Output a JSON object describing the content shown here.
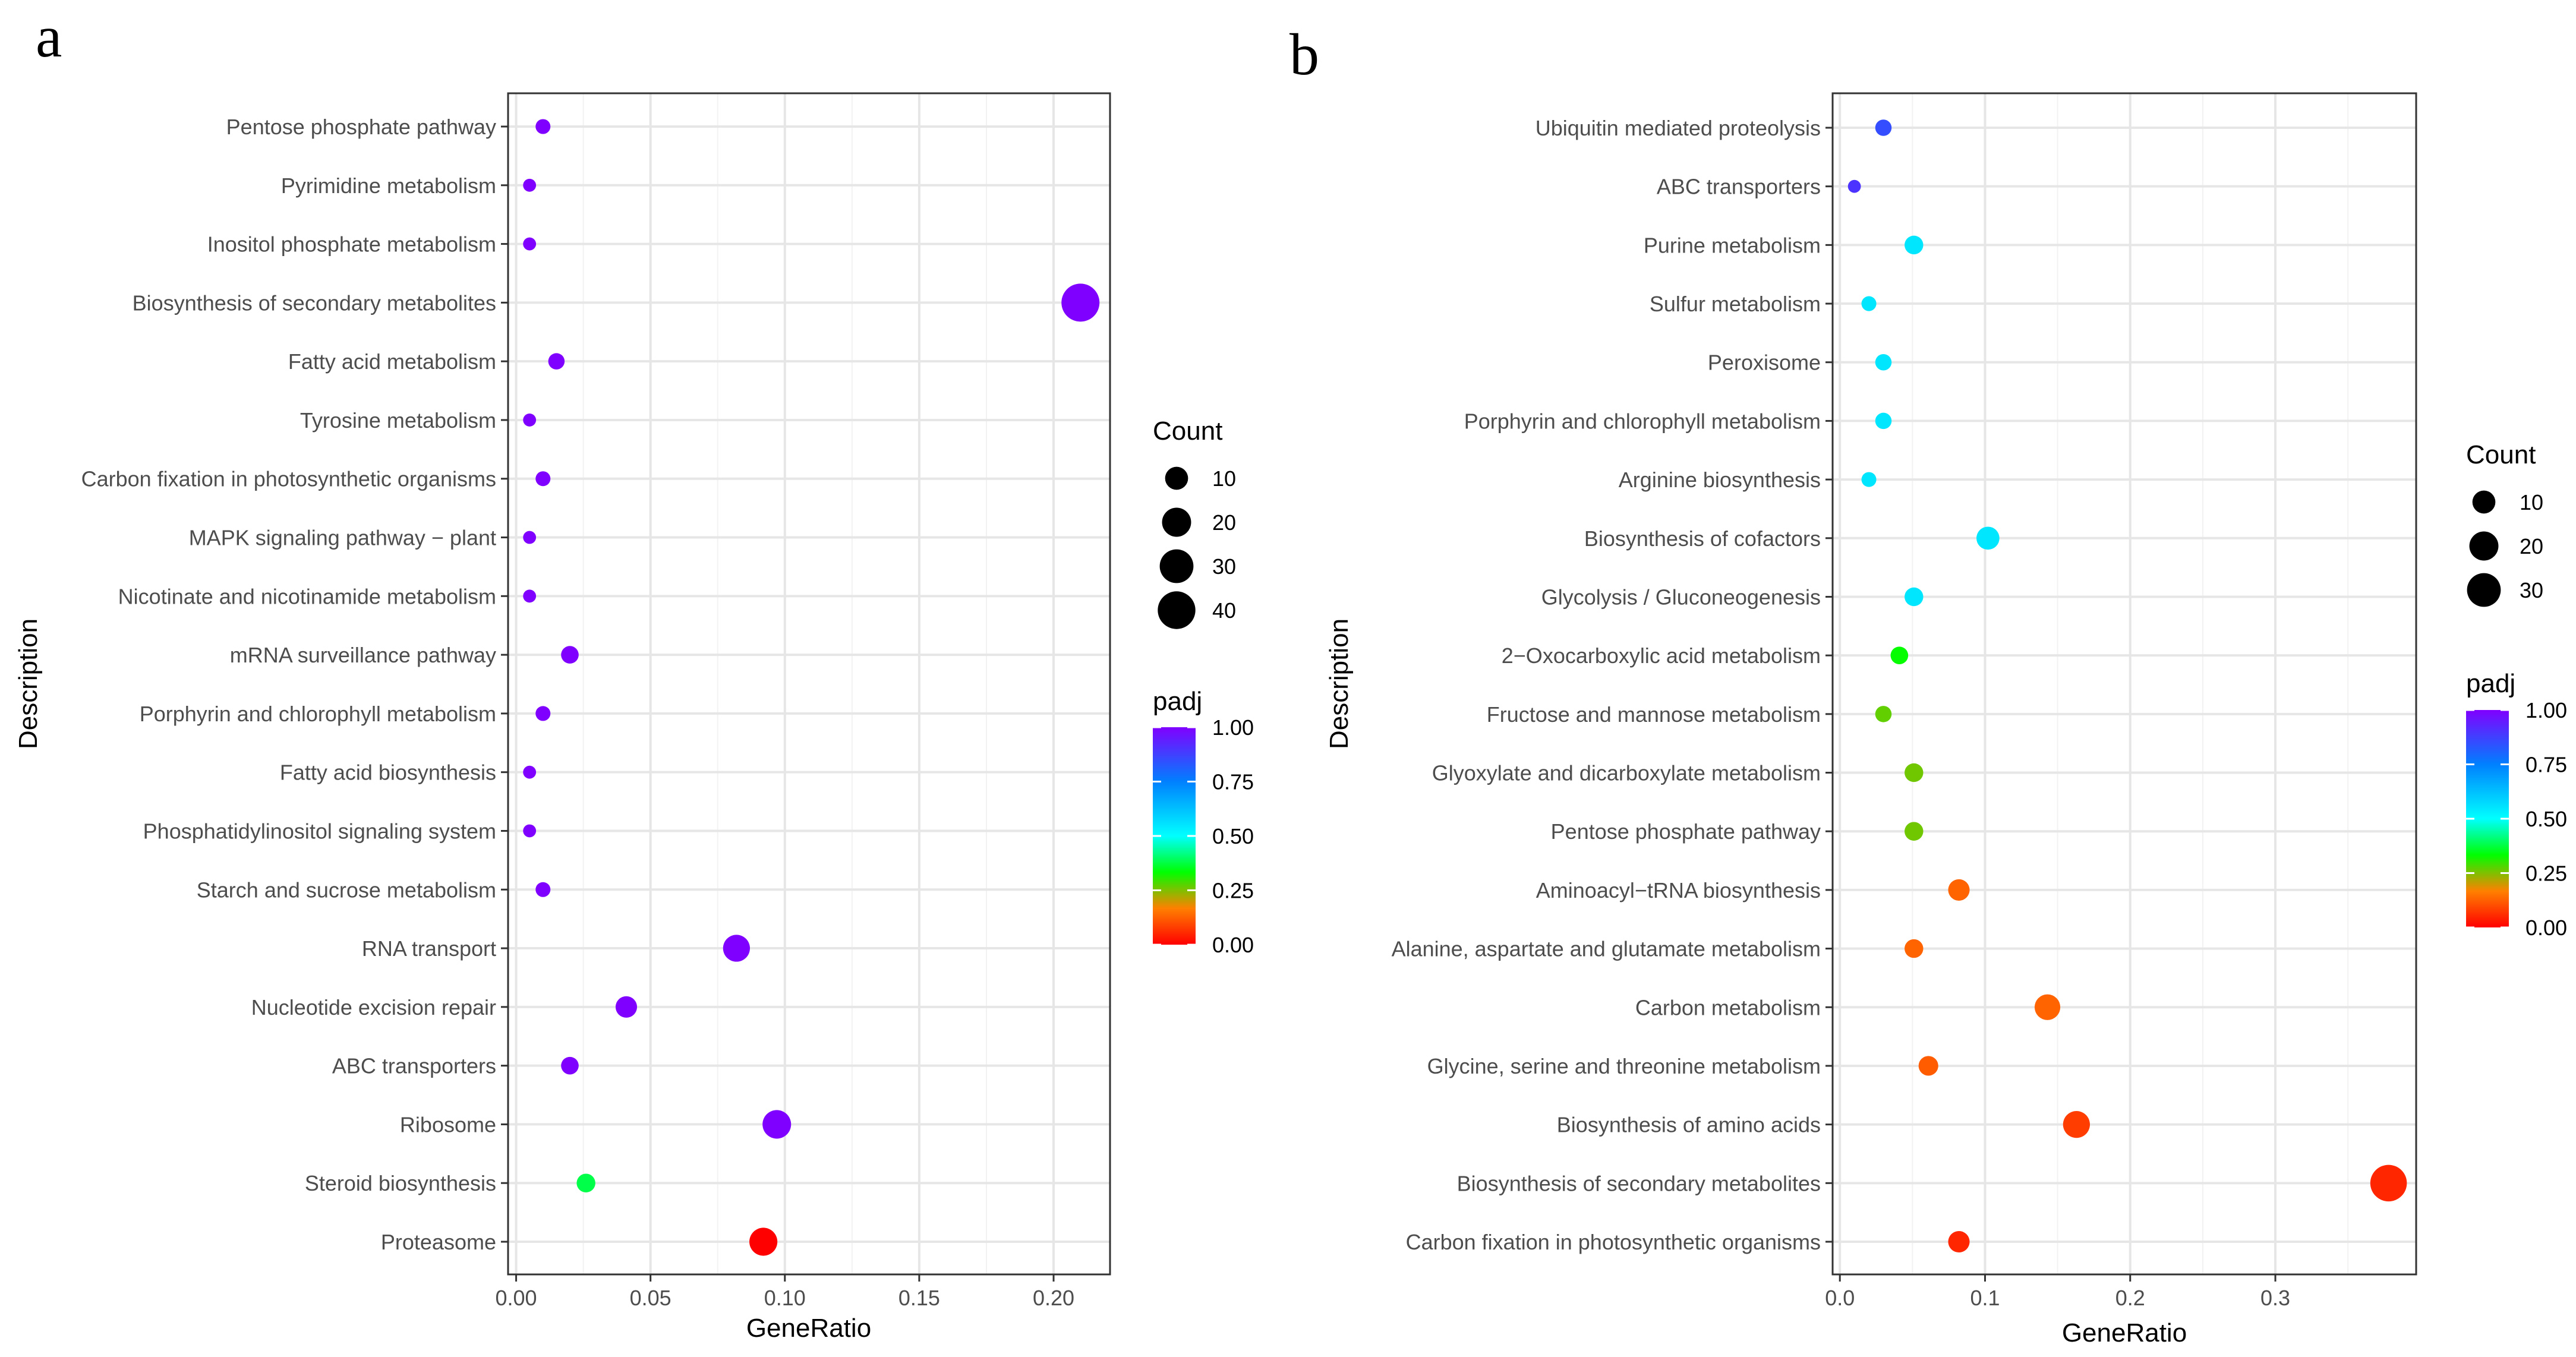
{
  "chart_data": [
    {
      "panel_label": "a",
      "type": "scatter",
      "xlabel": "GeneRatio",
      "ylabel": "Description",
      "xlim": [
        -0.003,
        0.221
      ],
      "xticks": [
        0.0,
        0.05,
        0.1,
        0.15,
        0.2
      ],
      "xtick_labels": [
        "0.00",
        "0.05",
        "0.10",
        "0.15",
        "0.20"
      ],
      "grid": true,
      "categories": [
        "Pentose phosphate pathway",
        "Pyrimidine metabolism",
        "Inositol phosphate metabolism",
        "Biosynthesis of secondary metabolites",
        "Fatty acid metabolism",
        "Tyrosine metabolism",
        "Carbon fixation in photosynthetic organisms",
        "MAPK signaling pathway − plant",
        "Nicotinate and nicotinamide metabolism",
        "mRNA surveillance pathway",
        "Porphyrin and chlorophyll metabolism",
        "Fatty acid biosynthesis",
        "Phosphatidylinositol signaling system",
        "Starch and sucrose metabolism",
        "RNA transport",
        "Nucleotide excision repair",
        "ABC transporters",
        "Ribosome",
        "Steroid biosynthesis",
        "Proteasome"
      ],
      "gene_ratio": [
        0.01,
        0.005,
        0.005,
        0.21,
        0.015,
        0.005,
        0.01,
        0.005,
        0.005,
        0.02,
        0.01,
        0.005,
        0.005,
        0.01,
        0.082,
        0.041,
        0.02,
        0.097,
        0.026,
        0.092
      ],
      "count": [
        2,
        1,
        1,
        41,
        3,
        1,
        2,
        1,
        1,
        4,
        2,
        1,
        1,
        2,
        16,
        8,
        4,
        19,
        5,
        18
      ],
      "padj": [
        1.0,
        1.0,
        1.0,
        1.0,
        1.0,
        1.0,
        1.0,
        1.0,
        1.0,
        1.0,
        1.0,
        1.0,
        1.0,
        1.0,
        1.0,
        1.0,
        1.0,
        1.0,
        0.38,
        0.0
      ],
      "size_legend": {
        "title": "Count",
        "values": [
          10,
          20,
          30,
          40
        ]
      },
      "color_legend": {
        "title": "padj",
        "ticks": [
          0.0,
          0.25,
          0.5,
          0.75,
          1.0
        ],
        "tick_labels": [
          "0.00",
          "0.25",
          "0.50",
          "0.75",
          "1.00"
        ]
      }
    },
    {
      "panel_label": "b",
      "type": "scatter",
      "xlabel": "GeneRatio",
      "ylabel": "Description",
      "xlim": [
        -0.005,
        0.397
      ],
      "xticks": [
        0.0,
        0.1,
        0.2,
        0.3
      ],
      "xtick_labels": [
        "0.0",
        "0.1",
        "0.2",
        "0.3"
      ],
      "grid": true,
      "categories": [
        "Ubiquitin mediated proteolysis",
        "ABC transporters",
        "Purine metabolism",
        "Sulfur metabolism",
        "Peroxisome",
        "Porphyrin and chlorophyll metabolism",
        "Arginine biosynthesis",
        "Biosynthesis of cofactors",
        "Glycolysis / Gluconeogenesis",
        "2−Oxocarboxylic acid metabolism",
        "Fructose and mannose metabolism",
        "Glyoxylate and dicarboxylate metabolism",
        "Pentose phosphate pathway",
        "Aminoacyl−tRNA biosynthesis",
        "Alanine, aspartate and glutamate metabolism",
        "Carbon metabolism",
        "Glycine, serine and threonine metabolism",
        "Biosynthesis of amino acids",
        "Biosynthesis of secondary metabolites",
        "Carbon fixation in photosynthetic organisms"
      ],
      "gene_ratio": [
        0.03,
        0.01,
        0.051,
        0.02,
        0.03,
        0.03,
        0.02,
        0.102,
        0.051,
        0.041,
        0.03,
        0.051,
        0.051,
        0.082,
        0.051,
        0.143,
        0.061,
        0.163,
        0.378,
        0.082
      ],
      "count": [
        3,
        1,
        5,
        2,
        3,
        3,
        2,
        10,
        5,
        4,
        3,
        5,
        5,
        8,
        5,
        14,
        6,
        16,
        37,
        8
      ],
      "padj": [
        0.85,
        0.9,
        0.55,
        0.55,
        0.55,
        0.55,
        0.55,
        0.55,
        0.55,
        0.33,
        0.27,
        0.26,
        0.26,
        0.13,
        0.13,
        0.13,
        0.12,
        0.08,
        0.05,
        0.05
      ],
      "size_legend": {
        "title": "Count",
        "values": [
          10,
          20,
          30
        ]
      },
      "color_legend": {
        "title": "padj",
        "ticks": [
          0.0,
          0.25,
          0.5,
          0.75,
          1.0
        ],
        "tick_labels": [
          "0.00",
          "0.25",
          "0.50",
          "0.75",
          "1.00"
        ]
      }
    }
  ]
}
